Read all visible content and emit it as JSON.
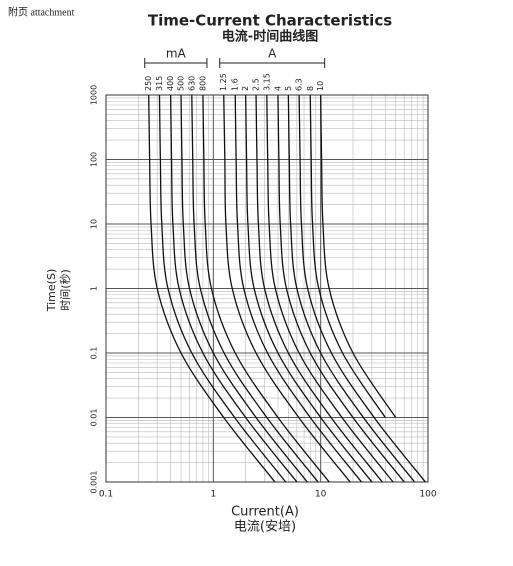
{
  "header": {
    "note": "附页  attachment"
  },
  "chart_data": {
    "type": "line",
    "title": "Time-Current Characteristics",
    "subtitle": "电流-时间曲线图",
    "xlabel": "Current(A)",
    "xlabel2": "电流(安培)",
    "ylabel": "Time(S)",
    "ylabel2": "时间(秒)",
    "groups": [
      "mA",
      "A"
    ],
    "xscale": "log",
    "yscale": "log",
    "grid": true,
    "color": "#111111",
    "xlim": [
      0.1,
      100
    ],
    "xticks": [
      0.1,
      1,
      10,
      100
    ],
    "ylim": [
      0.001,
      1000
    ],
    "yticks": [
      1000,
      100,
      10,
      1,
      0.1,
      0.01,
      0.001
    ],
    "series": [
      {
        "name": "250",
        "x": [
          0.25,
          0.255,
          0.263,
          0.3,
          0.5,
          1.25,
          3.75
        ],
        "values": [
          1000,
          100,
          10,
          1,
          0.1,
          0.01,
          0.001
        ]
      },
      {
        "name": "315",
        "x": [
          0.315,
          0.321,
          0.331,
          0.378,
          0.63,
          1.58,
          4.73
        ],
        "values": [
          1000,
          100,
          10,
          1,
          0.1,
          0.01,
          0.001
        ]
      },
      {
        "name": "400",
        "x": [
          0.4,
          0.408,
          0.42,
          0.48,
          0.8,
          2,
          6
        ],
        "values": [
          1000,
          100,
          10,
          1,
          0.1,
          0.01,
          0.001
        ]
      },
      {
        "name": "500",
        "x": [
          0.5,
          0.51,
          0.525,
          0.6,
          1,
          2.5,
          7.5
        ],
        "values": [
          1000,
          100,
          10,
          1,
          0.1,
          0.01,
          0.001
        ]
      },
      {
        "name": "630",
        "x": [
          0.63,
          0.643,
          0.662,
          0.756,
          1.26,
          3.15,
          9.45
        ],
        "values": [
          1000,
          100,
          10,
          1,
          0.1,
          0.01,
          0.001
        ]
      },
      {
        "name": "800",
        "x": [
          0.8,
          0.816,
          0.84,
          0.96,
          1.6,
          4,
          12
        ],
        "values": [
          1000,
          100,
          10,
          1,
          0.1,
          0.01,
          0.001
        ]
      },
      {
        "name": "1.25",
        "x": [
          1.25,
          1.28,
          1.31,
          1.5,
          2.5,
          6.25,
          18.8
        ],
        "values": [
          1000,
          100,
          10,
          1,
          0.1,
          0.01,
          0.001
        ]
      },
      {
        "name": "1.6",
        "x": [
          1.6,
          1.63,
          1.68,
          1.92,
          3.2,
          8,
          24
        ],
        "values": [
          1000,
          100,
          10,
          1,
          0.1,
          0.01,
          0.001
        ]
      },
      {
        "name": "2",
        "x": [
          2,
          2.04,
          2.1,
          2.4,
          4,
          10,
          30
        ],
        "values": [
          1000,
          100,
          10,
          1,
          0.1,
          0.01,
          0.001
        ]
      },
      {
        "name": "2.5",
        "x": [
          2.5,
          2.55,
          2.63,
          3,
          5,
          12.5,
          37.5
        ],
        "values": [
          1000,
          100,
          10,
          1,
          0.1,
          0.01,
          0.001
        ]
      },
      {
        "name": "3.15",
        "x": [
          3.15,
          3.21,
          3.31,
          3.78,
          6.3,
          15.8,
          47.3
        ],
        "values": [
          1000,
          100,
          10,
          1,
          0.1,
          0.01,
          0.001
        ]
      },
      {
        "name": "4",
        "x": [
          4,
          4.08,
          4.2,
          4.8,
          8,
          20,
          60
        ],
        "values": [
          1000,
          100,
          10,
          1,
          0.1,
          0.01,
          0.001
        ]
      },
      {
        "name": "5",
        "x": [
          5,
          5.1,
          5.25,
          6,
          10,
          25,
          75
        ],
        "values": [
          1000,
          100,
          10,
          1,
          0.1,
          0.01,
          0.001
        ]
      },
      {
        "name": "6.3",
        "x": [
          6.3,
          6.43,
          6.62,
          7.56,
          12.6,
          31.5,
          94.5
        ],
        "values": [
          1000,
          100,
          10,
          1,
          0.1,
          0.01,
          0.001
        ]
      },
      {
        "name": "8",
        "x": [
          8,
          8.16,
          8.4,
          9.6,
          16,
          40
        ],
        "values": [
          1000,
          100,
          10,
          1,
          0.1,
          0.01
        ]
      },
      {
        "name": "10",
        "x": [
          10,
          10.2,
          10.5,
          12,
          20,
          50
        ],
        "values": [
          1000,
          100,
          10,
          1,
          0.1,
          0.01
        ]
      }
    ]
  }
}
